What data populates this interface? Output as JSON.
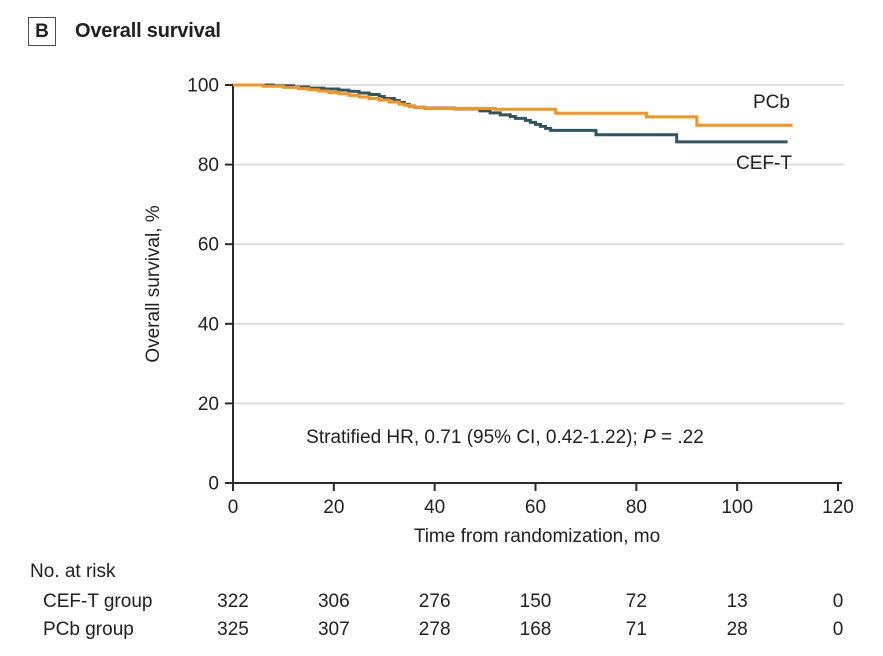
{
  "header": {
    "panel_label": "B",
    "title": "Overall survival"
  },
  "colors": {
    "pcb": "#F7941E",
    "cef_t": "#2E5560",
    "grid": "#D8D8D8",
    "axis": "#2B2B2B",
    "text": "#212121"
  },
  "annotation": {
    "prefix": "Stratified HR, 0.71 (95% CI, 0.42-1.22); ",
    "p_label": "P",
    "p_suffix": " = .22"
  },
  "risk_table": {
    "heading": "No. at risk",
    "rows": [
      {
        "label": "CEF-T group",
        "values": [
          322,
          306,
          276,
          150,
          72,
          13,
          0
        ]
      },
      {
        "label": "PCb group",
        "values": [
          325,
          307,
          278,
          168,
          71,
          28,
          0
        ]
      }
    ]
  },
  "chart_data": {
    "type": "line",
    "subtype": "kaplan-meier-step",
    "title": "Overall survival",
    "xlabel": "Time from randomization, mo",
    "ylabel": "Overall survival, %",
    "xlim": [
      0,
      120
    ],
    "ylim": [
      0,
      100
    ],
    "xticks": [
      0,
      20,
      40,
      60,
      80,
      100,
      120
    ],
    "yticks": [
      0,
      20,
      40,
      60,
      80,
      100
    ],
    "grid": "horizontal",
    "legend_position": "inline-right",
    "series": [
      {
        "name": "CEF-T",
        "color": "#2E5560",
        "points": [
          [
            0,
            100
          ],
          [
            8,
            99.8
          ],
          [
            12,
            99.5
          ],
          [
            15,
            99.2
          ],
          [
            18,
            99.0
          ],
          [
            21,
            98.7
          ],
          [
            23,
            98.4
          ],
          [
            25,
            98.0
          ],
          [
            27,
            97.6
          ],
          [
            29,
            97.1
          ],
          [
            30,
            96.6
          ],
          [
            32,
            96.1
          ],
          [
            33,
            95.6
          ],
          [
            34,
            95.1
          ],
          [
            35,
            94.7
          ],
          [
            36,
            94.4
          ],
          [
            38,
            94.2
          ],
          [
            44,
            94.0
          ],
          [
            49,
            93.5
          ],
          [
            51,
            93.0
          ],
          [
            53,
            92.5
          ],
          [
            55,
            92.1
          ],
          [
            56,
            91.6
          ],
          [
            58,
            91.1
          ],
          [
            59,
            90.6
          ],
          [
            60,
            90.1
          ],
          [
            61,
            89.6
          ],
          [
            62,
            89.1
          ],
          [
            63,
            88.6
          ],
          [
            72,
            87.5
          ],
          [
            88,
            85.7
          ],
          [
            110,
            85.7
          ]
        ]
      },
      {
        "name": "PCb",
        "color": "#F7941E",
        "points": [
          [
            0,
            100
          ],
          [
            6,
            99.7
          ],
          [
            10,
            99.4
          ],
          [
            13,
            99.1
          ],
          [
            15,
            98.8
          ],
          [
            17,
            98.5
          ],
          [
            19,
            98.1
          ],
          [
            21,
            97.8
          ],
          [
            23,
            97.4
          ],
          [
            25,
            97.0
          ],
          [
            27,
            96.6
          ],
          [
            29,
            96.2
          ],
          [
            31,
            95.7
          ],
          [
            33,
            95.2
          ],
          [
            34,
            94.9
          ],
          [
            35,
            94.6
          ],
          [
            36,
            94.4
          ],
          [
            38,
            94.1
          ],
          [
            52,
            93.9
          ],
          [
            64,
            92.9
          ],
          [
            82,
            92.0
          ],
          [
            92,
            89.9
          ],
          [
            111,
            89.9
          ]
        ]
      }
    ]
  }
}
